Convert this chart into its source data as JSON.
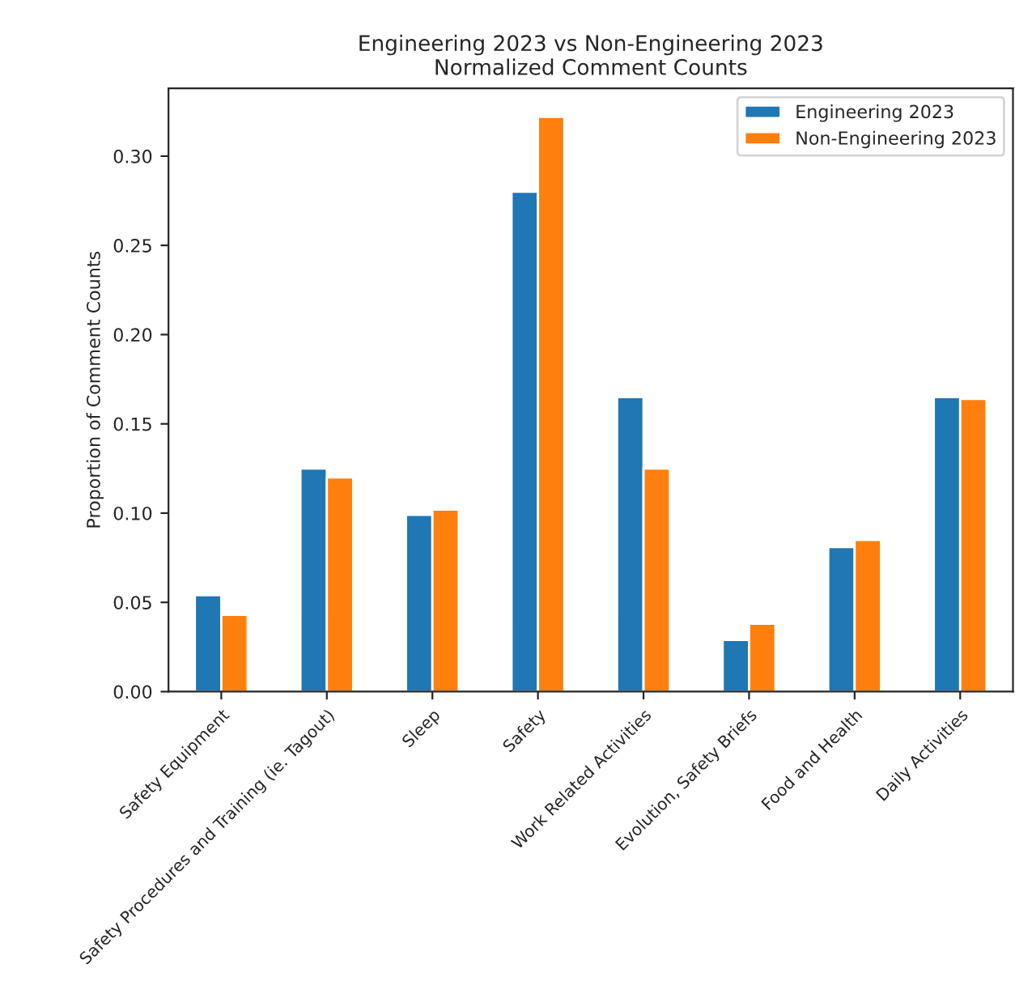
{
  "chart_data": {
    "type": "bar",
    "title": "Engineering 2023 vs Non-Engineering 2023\nNormalized Comment Counts",
    "ylabel": "Proportion of Comment Counts",
    "categories": [
      "Safety Equipment",
      "Safety Procedures and Training (ie. Tagout)",
      "Sleep",
      "Safety",
      "Work Related Activities",
      "Evolution, Safety Briefs",
      "Food and Health",
      "Daily Activities"
    ],
    "series": [
      {
        "name": "Engineering 2023",
        "color": "#1f77b4",
        "values": [
          0.054,
          0.125,
          0.099,
          0.28,
          0.165,
          0.029,
          0.081,
          0.165
        ]
      },
      {
        "name": "Non-Engineering 2023",
        "color": "#ff7f0e",
        "values": [
          0.043,
          0.12,
          0.102,
          0.322,
          0.125,
          0.038,
          0.085,
          0.164
        ]
      }
    ],
    "ylim": [
      0,
      0.338
    ],
    "yticks": [
      {
        "value": 0,
        "label": "0.00"
      },
      {
        "value": 0.05,
        "label": "0.05"
      },
      {
        "value": 0.1,
        "label": "0.10"
      },
      {
        "value": 0.15,
        "label": "0.15"
      },
      {
        "value": 0.2,
        "label": "0.20"
      },
      {
        "value": 0.25,
        "label": "0.25"
      },
      {
        "value": 0.3,
        "label": "0.30"
      }
    ],
    "grid": false,
    "legend": "top right"
  }
}
